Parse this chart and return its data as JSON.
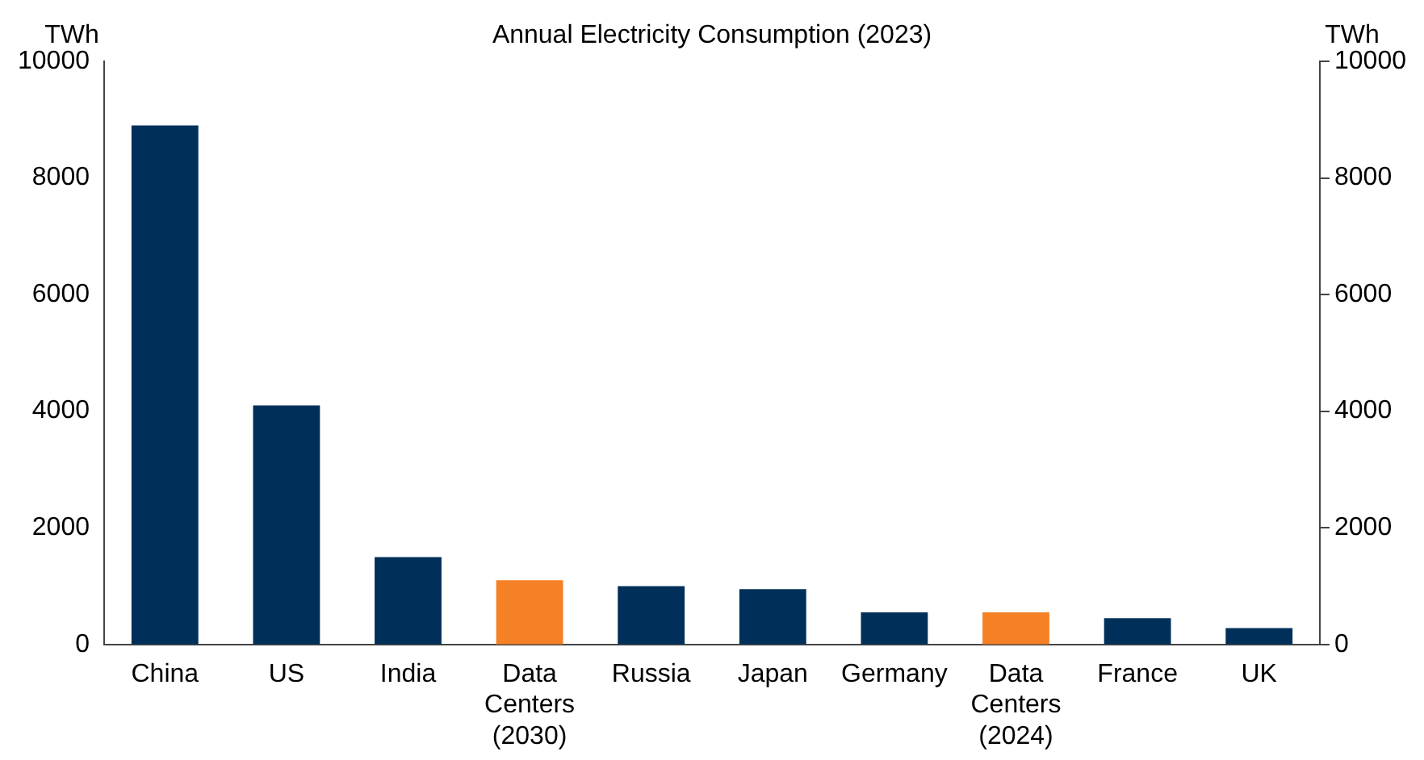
{
  "chart_data": {
    "type": "bar",
    "title": "Annual Electricity Consumption (2023)",
    "ylabel": "TWh",
    "y2label": "TWh",
    "categories": [
      "China",
      "US",
      "India",
      "Data Centers (2030)",
      "Russia",
      "Japan",
      "Germany",
      "Data Centers (2024)",
      "France",
      "UK"
    ],
    "values": [
      8900,
      4100,
      1500,
      1100,
      1000,
      950,
      550,
      550,
      450,
      280
    ],
    "colors": [
      "#00305a",
      "#00305a",
      "#00305a",
      "#f58025",
      "#00305a",
      "#00305a",
      "#00305a",
      "#f58025",
      "#00305a",
      "#00305a"
    ],
    "ylim": [
      0,
      10000
    ],
    "yticks": [
      0,
      2000,
      4000,
      6000,
      8000,
      10000
    ],
    "y2lim": [
      0,
      10000
    ],
    "y2ticks": [
      0,
      2000,
      4000,
      6000,
      8000,
      10000
    ],
    "grid": false,
    "legend": false
  }
}
